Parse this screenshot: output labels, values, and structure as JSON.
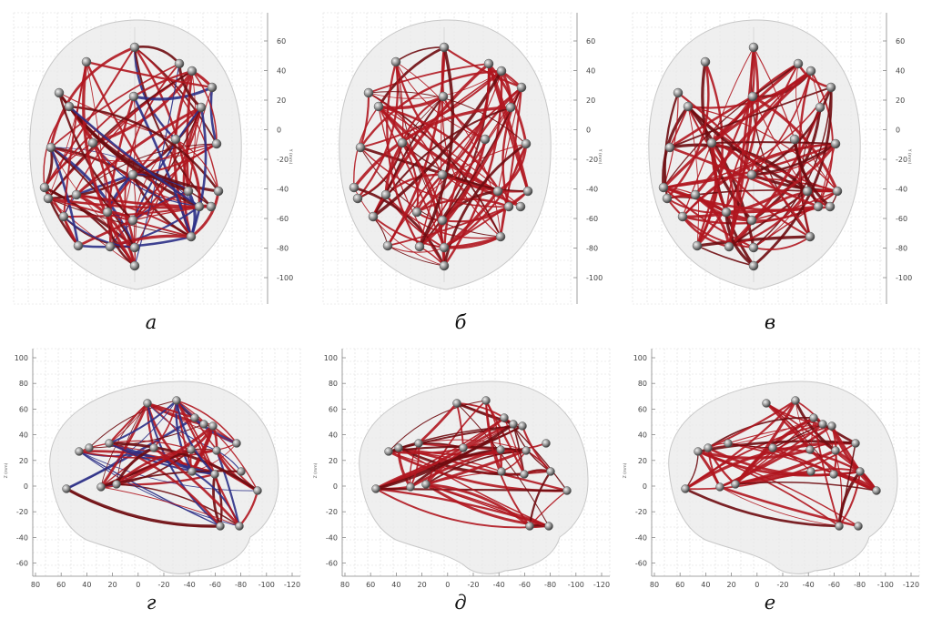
{
  "panels": [
    {
      "id": "a",
      "label": "а",
      "view": "top",
      "blue": true
    },
    {
      "id": "b",
      "label": "б",
      "view": "top",
      "blue": false
    },
    {
      "id": "v",
      "label": "в",
      "view": "top",
      "blue": false
    },
    {
      "id": "g",
      "label": "г",
      "view": "side",
      "blue": true
    },
    {
      "id": "d",
      "label": "д",
      "view": "side",
      "blue": false
    },
    {
      "id": "e",
      "label": "е",
      "view": "side",
      "blue": false
    }
  ],
  "axes": {
    "top_y_ticks": [
      "60",
      "40",
      "20",
      "0",
      "-20",
      "-40",
      "-60",
      "-80",
      "-100"
    ],
    "top_y_label": "Y (mm)",
    "side_z_ticks": [
      "100",
      "80",
      "60",
      "40",
      "20",
      "0",
      "-20",
      "-40",
      "-60"
    ],
    "side_z_label": "Z (mm)",
    "side_y_ticks": [
      "80",
      "60",
      "40",
      "20",
      "0",
      "-20",
      "-40",
      "-60",
      "-80",
      "-100",
      "-120"
    ]
  },
  "colors": {
    "edge_red": "#b0161f",
    "edge_dark": "#6e0b10",
    "edge_blue": "#2b2f86",
    "brain": "#e9e9e9",
    "node": "#8d8d8d"
  }
}
